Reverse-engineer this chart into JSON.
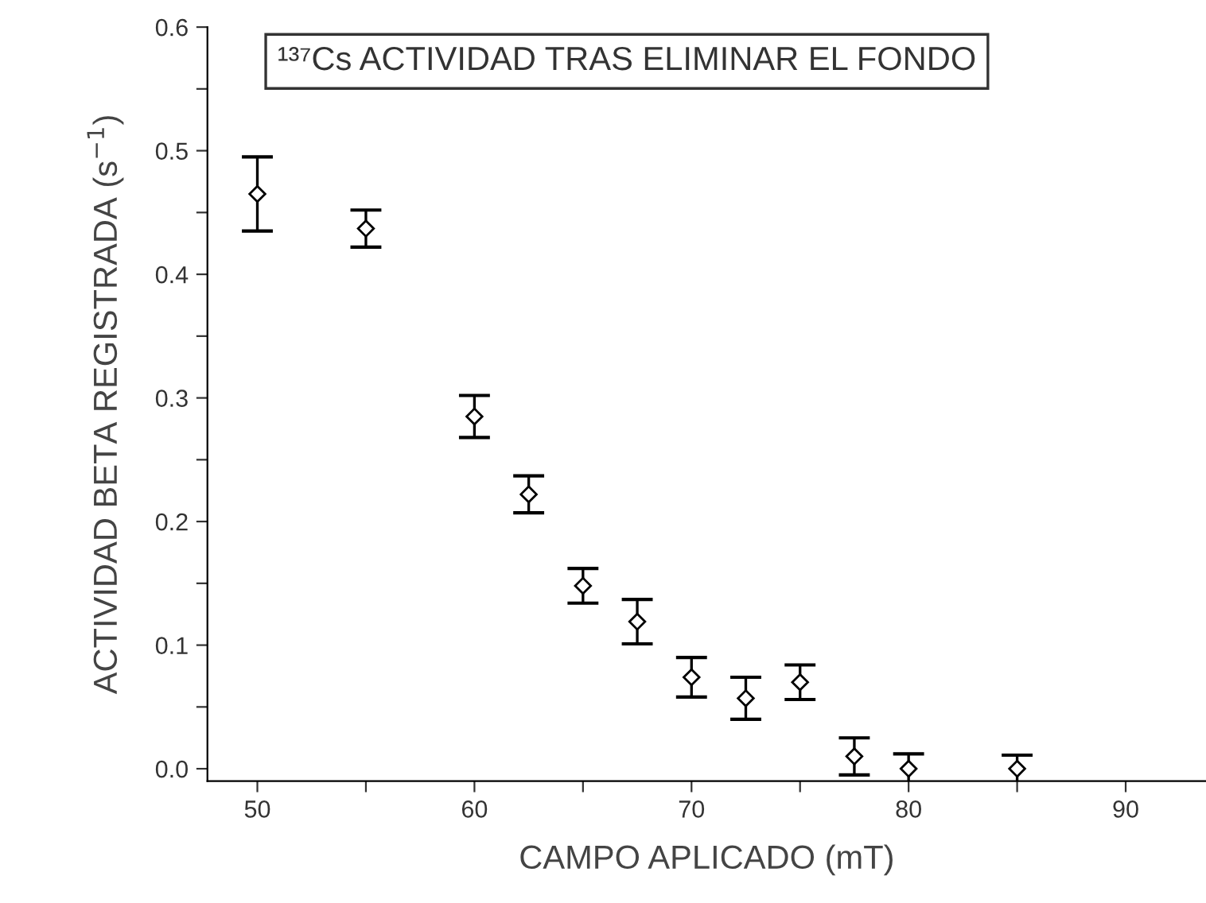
{
  "chart_data": {
    "type": "scatter",
    "title": "¹³⁷Cs ACTIVIDAD TRAS ELIMINAR EL FONDO",
    "xlabel": "CAMPO APLICADO (mT)",
    "ylabel": "ACTIVIDAD BETA REGISTRADA (s$^{−1}$)",
    "x": [
      50,
      55,
      60,
      62.5,
      65,
      67.5,
      70,
      72.5,
      75,
      77.5,
      80,
      85
    ],
    "series": [
      {
        "color": "#000000",
        "values": [
          0.465,
          0.437,
          0.285,
          0.222,
          0.148,
          0.119,
          0.074,
          0.057,
          0.07,
          0.01,
          0.0,
          0.0
        ],
        "errors": [
          0.03,
          0.015,
          0.017,
          0.015,
          0.014,
          0.018,
          0.016,
          0.017,
          0.014,
          0.015,
          0.012,
          0.011
        ]
      }
    ],
    "marker": "diamond",
    "grid": false,
    "legend": false,
    "xlim": [
      47.7,
      93.7
    ],
    "xticks": [
      50,
      {
        "value": 55,
        "label": null
      },
      60,
      {
        "value": 65,
        "label": null
      },
      70,
      {
        "value": 75,
        "label": null
      },
      80,
      {
        "value": 85,
        "label": null
      },
      90
    ],
    "ylim": [
      -0.01,
      0.6
    ],
    "yticks": [
      {
        "value": 0,
        "label": "0.0"
      },
      {
        "value": 0.05,
        "label": null
      },
      0.1,
      {
        "value": 0.15,
        "label": null
      },
      0.2,
      {
        "value": 0.25,
        "label": null
      },
      0.3,
      {
        "value": 0.35,
        "label": null
      },
      0.4,
      {
        "value": 0.45,
        "label": null
      },
      0.5,
      {
        "value": 0.55,
        "label": null
      },
      0.6
    ]
  }
}
